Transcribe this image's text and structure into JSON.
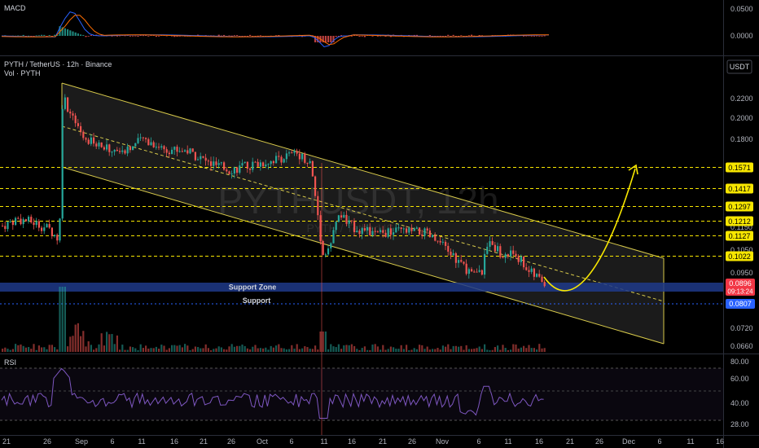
{
  "header": {
    "symbol_line": "PYTH / TetherUS · 12h · Binance",
    "volume_label": "Vol · PYTH",
    "currency": "USDT",
    "watermark": "PYTHUSDT, 12h",
    "watermark_sub": "PYTH / TetherUS"
  },
  "macd_pane": {
    "title": "MACD",
    "ticks": [
      "0.0500",
      "0.0000"
    ]
  },
  "rsi_pane": {
    "title": "RSI",
    "ticks": [
      "80.00",
      "60.00",
      "40.00",
      "28.00"
    ]
  },
  "price_axis": {
    "ticks": [
      "0.2200",
      "0.2000",
      "0.1800",
      "0.1150",
      "0.1050",
      "0.0950",
      "0.0720",
      "0.0660"
    ]
  },
  "levels": [
    {
      "value": "0.1571",
      "color": "#f7e600"
    },
    {
      "value": "0.1417",
      "color": "#f7e600"
    },
    {
      "value": "0.1297",
      "color": "#f7e600"
    },
    {
      "value": "0.1212",
      "color": "#f7e600"
    },
    {
      "value": "0.1127",
      "color": "#f7e600"
    },
    {
      "value": "0.1022",
      "color": "#f7e600"
    }
  ],
  "current_price": {
    "value": "0.0896",
    "countdown": "09:13:24",
    "color": "#f23645"
  },
  "support_price": {
    "value": "0.0807",
    "color": "#2962ff"
  },
  "annotations": {
    "support_zone": "Support Zone",
    "support": "Support"
  },
  "time_axis": {
    "labels": [
      "21",
      "26",
      "Sep",
      "6",
      "11",
      "16",
      "21",
      "26",
      "Oct",
      "6",
      "11",
      "16",
      "21",
      "26",
      "Nov",
      "6",
      "11",
      "16",
      "21",
      "26",
      "Dec",
      "6",
      "11",
      "16"
    ]
  },
  "colors": {
    "up": "#26a69a",
    "down": "#ef5350",
    "channel": "#d7c94a",
    "arrow": "#f7e600",
    "zone": "#1e3a8a",
    "rsi": "#7e57c2"
  }
}
